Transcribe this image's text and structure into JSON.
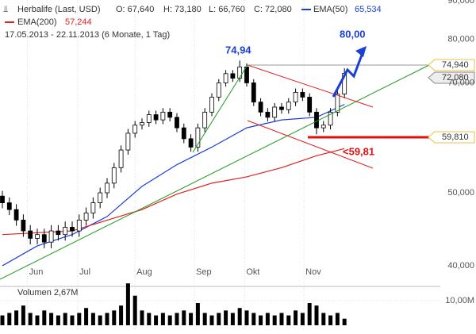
{
  "header": {
    "icon": "⫫",
    "name": "Herbalife (Last, USD)",
    "open": "O: 67,640",
    "high": "H: 73,180",
    "low": "L: 66,760",
    "close": "C: 72,080",
    "ema50_label": "EMA(50)",
    "ema50_value": "65,534",
    "ema200_label": "EMA(200)",
    "ema200_value": "57,244",
    "range": "17.05.2013 - 22.11.2013 (6 Monate, 1 Tag)"
  },
  "annotations": {
    "high_label": "74,94",
    "target_label": "80,00",
    "low_label": "<59,81",
    "tag_high": "74,940",
    "tag_last": "72,080",
    "tag_low": "59,810"
  },
  "chart_data": {
    "type": "candlestick",
    "log": true,
    "grid": true,
    "xlim": [
      -0.34,
      62.73
    ],
    "ylim": [
      38.1,
      90.2
    ],
    "xticks": [
      {
        "value": 3.6,
        "label": "Jun"
      },
      {
        "value": 10.8,
        "label": "Jul"
      },
      {
        "value": 19,
        "label": "Aug"
      },
      {
        "value": 27.5,
        "label": "Sep"
      },
      {
        "value": 34.7,
        "label": "Okt"
      },
      {
        "value": 43.2,
        "label": "Nov"
      }
    ],
    "yticks": [
      {
        "value": 40,
        "label": "40,000"
      },
      {
        "value": 50,
        "label": "50,000"
      },
      {
        "value": 70,
        "label": "70,000"
      },
      {
        "value": 80,
        "label": "80,000"
      },
      {
        "value": 90,
        "label": "90,000"
      }
    ],
    "up_color": "#ffffff",
    "down_color": "#000000",
    "open": [
      49.5,
      48.5,
      47.5,
      46,
      44.5,
      43.5,
      44,
      43,
      44.5,
      44,
      45,
      44.5,
      46,
      47,
      48.5,
      50,
      51.5,
      54,
      57,
      60,
      61.5,
      62,
      63.5,
      62.5,
      64,
      63,
      61,
      59,
      57.5,
      61,
      64,
      67,
      70,
      72,
      71,
      73.5,
      70,
      66,
      64,
      63,
      65,
      64.5,
      66,
      68,
      67,
      64,
      61,
      61.5,
      64,
      67.64
    ],
    "high": [
      50.3,
      49.3,
      48.3,
      46.8,
      45.3,
      44.8,
      44.8,
      45.3,
      45.3,
      45.8,
      45.8,
      46.8,
      47.8,
      49.3,
      50.8,
      52.3,
      54.8,
      57.8,
      60.8,
      62.3,
      62.8,
      64.3,
      64.3,
      64.8,
      64.8,
      63.8,
      61.8,
      59.8,
      61.8,
      64.8,
      67.8,
      70.8,
      72.8,
      72.8,
      74.94,
      74.3,
      70.8,
      66.8,
      64.8,
      65.8,
      65.8,
      66.8,
      68.8,
      68.8,
      67.8,
      64.8,
      62.3,
      64.8,
      68.4,
      73.18
    ],
    "low": [
      47.7,
      46.7,
      45.2,
      43.7,
      42.7,
      42.7,
      42.2,
      42.2,
      43.2,
      43.2,
      43.7,
      43.7,
      45.2,
      46.2,
      47.7,
      49.2,
      50.7,
      53.2,
      56.2,
      59.2,
      60.7,
      61.2,
      61.7,
      61.7,
      62.2,
      60.2,
      58.2,
      56.7,
      56.7,
      60.2,
      63.2,
      66.2,
      69.2,
      70.2,
      70.2,
      69.2,
      65.2,
      63.2,
      62.2,
      62.2,
      63.7,
      63.7,
      65.2,
      66.2,
      63.2,
      59.81,
      60.2,
      60.7,
      63.2,
      66.76
    ],
    "close": [
      48.5,
      47.5,
      46,
      44.5,
      43.5,
      44,
      43,
      44.5,
      44,
      45,
      44.5,
      46,
      47,
      48.5,
      50,
      51.5,
      54,
      57,
      60,
      61.5,
      62,
      63.5,
      62.5,
      64,
      63,
      61,
      59,
      57.5,
      61,
      64,
      67,
      70,
      72,
      71,
      73.5,
      70,
      66,
      64,
      63,
      65,
      64.5,
      66,
      68,
      67,
      64,
      61,
      61.5,
      64,
      67.64,
      72.08
    ],
    "series": [
      {
        "name": "EMA(50)",
        "color": "#1a3fd6",
        "x": [
          0,
          5,
          10,
          15,
          20,
          25,
          30,
          35,
          40,
          45,
          49
        ],
        "values": [
          40,
          42.5,
          44,
          46.5,
          51,
          54.5,
          57.5,
          61,
          62.5,
          63,
          65.53
        ]
      },
      {
        "name": "EMA(200)",
        "color": "#e02020",
        "x": [
          0,
          10,
          20,
          25,
          30,
          35,
          40,
          45,
          49
        ],
        "values": [
          44,
          44.5,
          47.5,
          49.8,
          51.5,
          52.5,
          54,
          56,
          57.24
        ]
      }
    ],
    "volume": {
      "label": "Volumen 2,67M",
      "color": "#000000",
      "ylim": [
        0,
        17.7
      ],
      "yticks": [
        {
          "value": 10,
          "label": "10,00M"
        }
      ],
      "values": [
        4,
        5,
        6,
        8,
        5,
        4,
        6,
        5,
        4,
        5,
        4,
        5,
        7,
        5,
        4,
        5,
        6,
        8,
        17,
        12,
        6,
        5,
        4,
        5,
        4,
        5,
        6,
        5,
        9,
        5,
        4,
        5,
        6,
        5,
        7,
        6,
        5,
        4,
        5,
        4,
        5,
        4,
        6,
        5,
        9,
        8,
        5,
        4,
        5,
        2.67
      ]
    }
  }
}
